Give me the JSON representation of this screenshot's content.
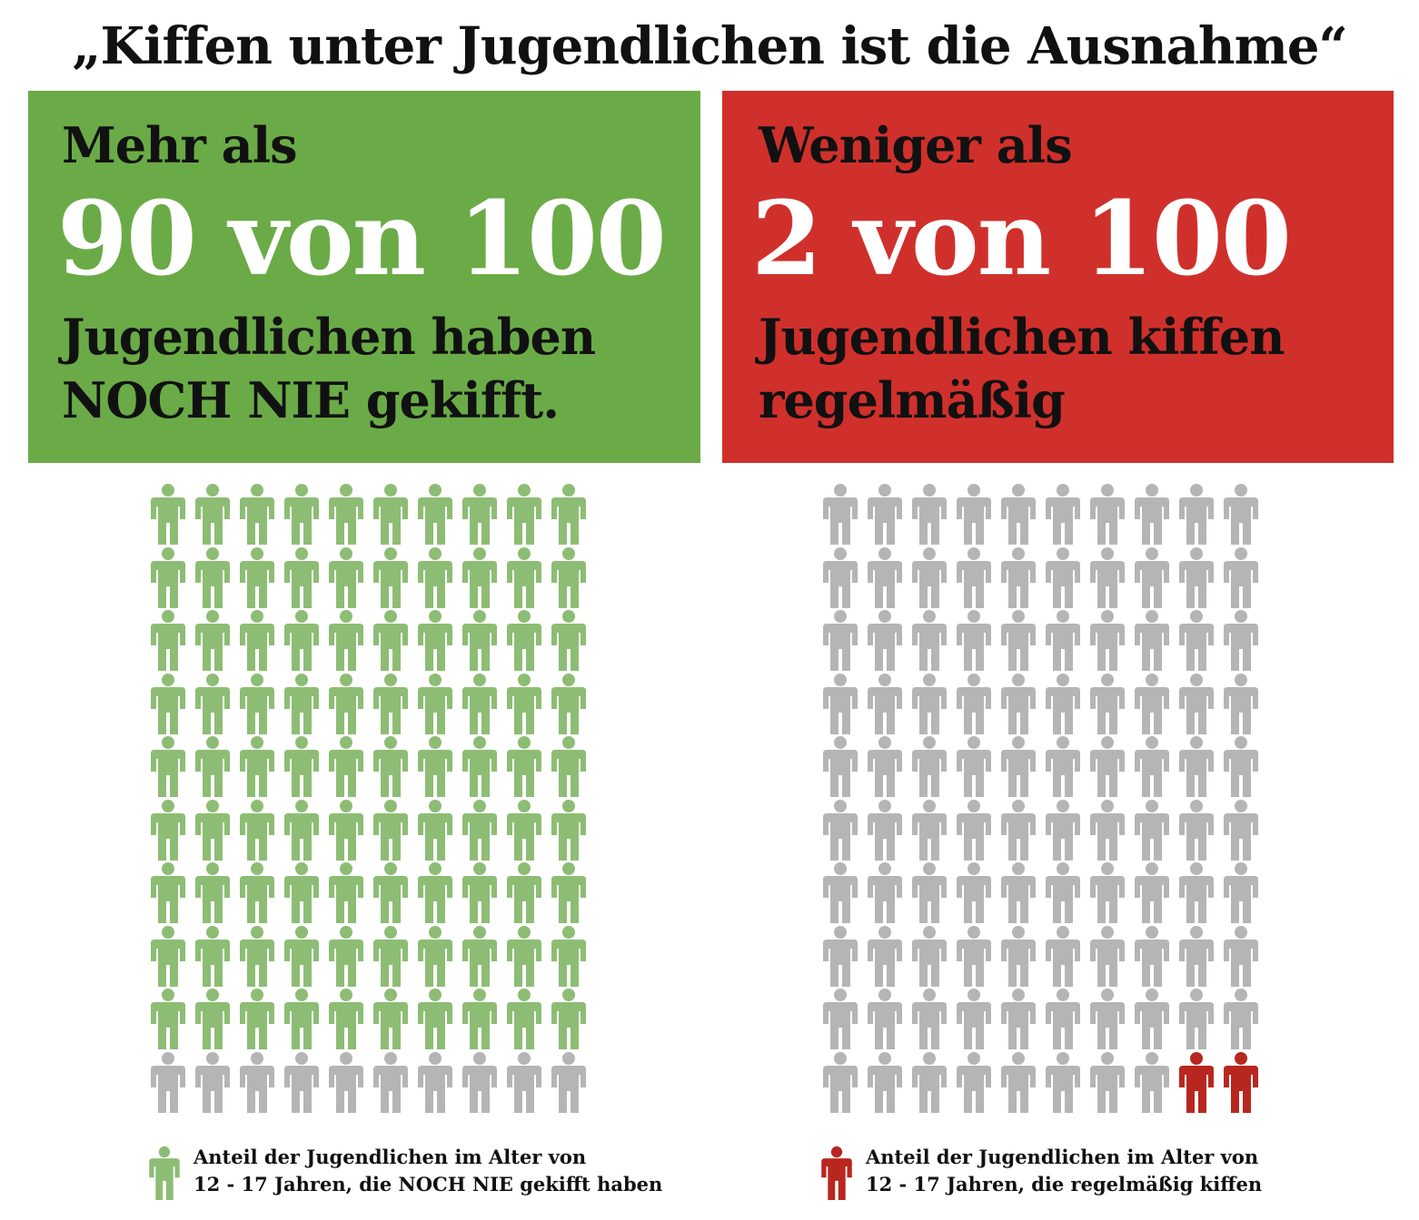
{
  "title": "„Kiffen unter Jugendlichen ist die Ausnahme“",
  "left_panel": {
    "pre": "Mehr als",
    "big": "90 von 100",
    "desc_line1": "Jugendlichen haben",
    "desc_line2": "NOCH NIE gekifft.",
    "color": "#6aab47"
  },
  "right_panel": {
    "pre": "Weniger als",
    "big": "2 von 100",
    "desc_line1": "Jugendlichen kiffen",
    "desc_line2": "regelmäßig",
    "color": "#d0302b"
  },
  "left_pictogram": {
    "total": 100,
    "highlighted": 90,
    "highlight_color": "#8dbd74",
    "base_color": "#b5b5b5",
    "highlight_from": "top"
  },
  "right_pictogram": {
    "total": 100,
    "highlighted": 2,
    "highlight_color": "#b8271f",
    "base_color": "#b5b5b5",
    "highlight_from": "bottom-right"
  },
  "left_legend": {
    "line1": "Anteil der Jugendlichen im Alter von",
    "line2": "12 - 17 Jahren, die NOCH NIE gekifft haben",
    "icon_color": "#8dbd74"
  },
  "right_legend": {
    "line1": "Anteil der Jugendlichen im Alter von",
    "line2": "12 - 17 Jahren, die regelmäßig kiffen",
    "icon_color": "#b8271f"
  }
}
